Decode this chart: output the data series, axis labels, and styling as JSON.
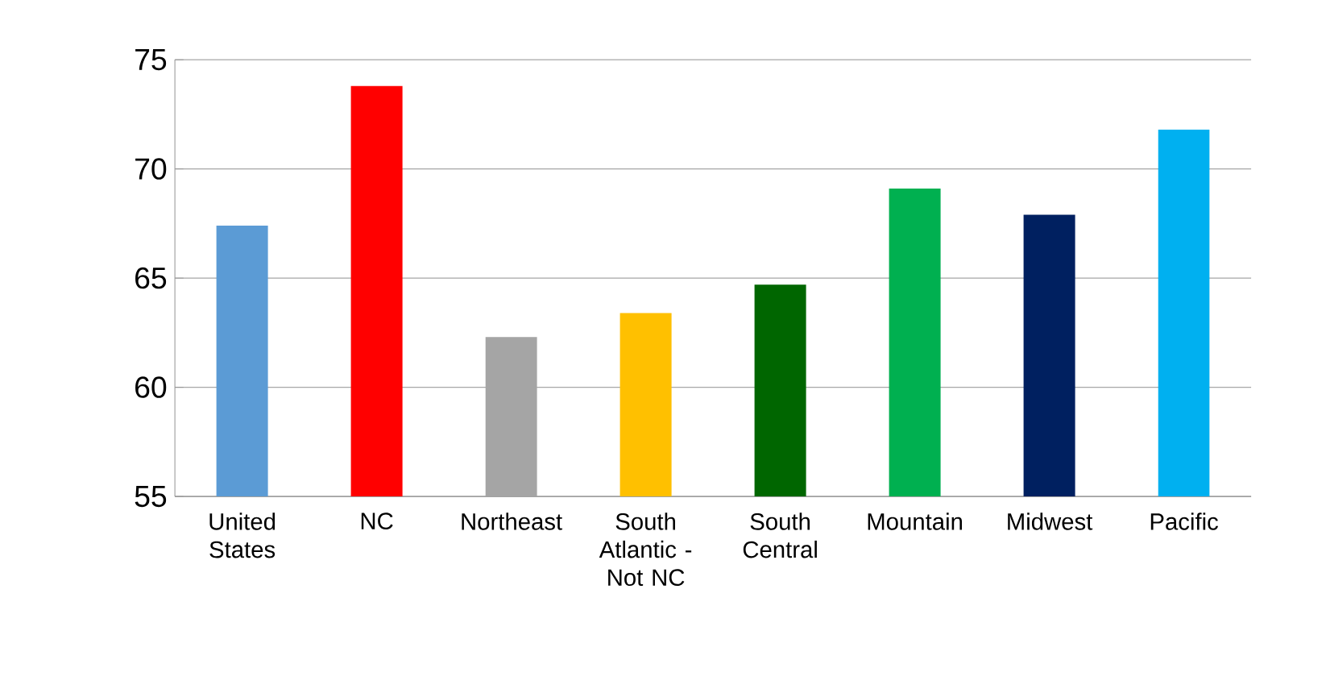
{
  "chart_data": {
    "type": "bar",
    "categories": [
      "United States",
      "NC",
      "Northeast",
      "South Atlantic - Not NC",
      "South Central",
      "Mountain",
      "Midwest",
      "Pacific"
    ],
    "values": [
      67.4,
      73.8,
      62.3,
      63.4,
      64.7,
      69.1,
      67.9,
      71.8
    ],
    "colors": [
      "#5b9bd5",
      "#ff0000",
      "#a5a5a5",
      "#ffc000",
      "#006600",
      "#00b050",
      "#002060",
      "#00b0f0"
    ],
    "ylim": [
      55,
      75
    ],
    "yticks": [
      55,
      60,
      65,
      70,
      75
    ],
    "grid": "y"
  }
}
